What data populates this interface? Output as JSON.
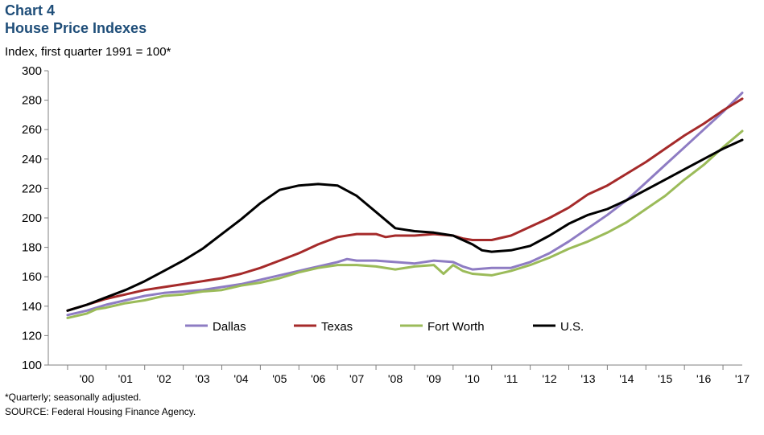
{
  "header": {
    "chart_number": "Chart 4",
    "title": "House Price Indexes",
    "ylabel": "Index, first quarter 1991 = 100*"
  },
  "footer": {
    "footnote": "*Quarterly; seasonally adjusted.",
    "source": "SOURCE: Federal Housing Finance Agency."
  },
  "chart_data": {
    "type": "line",
    "title": "House Price Indexes",
    "ylabel": "Index, first quarter 1991 = 100*",
    "xlabel": "",
    "ylim": [
      100,
      300
    ],
    "yticks": [
      100,
      120,
      140,
      160,
      180,
      200,
      220,
      240,
      260,
      280,
      300
    ],
    "x_range": [
      1999.5,
      2017.5
    ],
    "x_tick_labels": [
      {
        "label": "'00",
        "center": 2000.5
      },
      {
        "label": "'01",
        "center": 2001.5
      },
      {
        "label": "'02",
        "center": 2002.5
      },
      {
        "label": "'03",
        "center": 2003.5
      },
      {
        "label": "'04",
        "center": 2004.5
      },
      {
        "label": "'05",
        "center": 2005.5
      },
      {
        "label": "'06",
        "center": 2006.5
      },
      {
        "label": "'07",
        "center": 2007.5
      },
      {
        "label": "'08",
        "center": 2008.5
      },
      {
        "label": "'09",
        "center": 2009.5
      },
      {
        "label": "'10",
        "center": 2010.5
      },
      {
        "label": "'11",
        "center": 2011.5
      },
      {
        "label": "'12",
        "center": 2012.5
      },
      {
        "label": "'13",
        "center": 2013.5
      },
      {
        "label": "'14",
        "center": 2014.5
      },
      {
        "label": "'15",
        "center": 2015.5
      },
      {
        "label": "'16",
        "center": 2016.5
      },
      {
        "label": "'17",
        "center": 2017.5
      }
    ],
    "x_tick_marks": [
      2000,
      2001,
      2002,
      2003,
      2004,
      2005,
      2006,
      2007,
      2008,
      2009,
      2010,
      2011,
      2012,
      2013,
      2014,
      2015,
      2016,
      2017
    ],
    "grid": false,
    "legend": {
      "placement": "bottom-center-inside",
      "orientation": "horizontal"
    },
    "series": [
      {
        "name": "Dallas",
        "color": "#8e7cc3",
        "points": [
          [
            2000.0,
            134
          ],
          [
            2000.5,
            137
          ],
          [
            2001.0,
            141
          ],
          [
            2001.5,
            144
          ],
          [
            2002.0,
            147
          ],
          [
            2002.5,
            149
          ],
          [
            2003.0,
            150
          ],
          [
            2003.5,
            151
          ],
          [
            2004.0,
            153
          ],
          [
            2004.5,
            155
          ],
          [
            2005.0,
            158
          ],
          [
            2005.5,
            161
          ],
          [
            2006.0,
            164
          ],
          [
            2006.5,
            167
          ],
          [
            2007.0,
            170
          ],
          [
            2007.25,
            172
          ],
          [
            2007.5,
            171
          ],
          [
            2008.0,
            171
          ],
          [
            2008.5,
            170
          ],
          [
            2009.0,
            169
          ],
          [
            2009.5,
            171
          ],
          [
            2010.0,
            170
          ],
          [
            2010.25,
            167
          ],
          [
            2010.5,
            165
          ],
          [
            2011.0,
            166
          ],
          [
            2011.5,
            166
          ],
          [
            2012.0,
            170
          ],
          [
            2012.5,
            176
          ],
          [
            2013.0,
            184
          ],
          [
            2013.5,
            193
          ],
          [
            2014.0,
            202
          ],
          [
            2014.5,
            212
          ],
          [
            2015.0,
            224
          ],
          [
            2015.5,
            236
          ],
          [
            2016.0,
            248
          ],
          [
            2016.5,
            260
          ],
          [
            2017.0,
            272
          ],
          [
            2017.5,
            285
          ]
        ]
      },
      {
        "name": "Texas",
        "color": "#a52a2a",
        "points": [
          [
            2000.0,
            137
          ],
          [
            2000.5,
            141
          ],
          [
            2001.0,
            145
          ],
          [
            2001.5,
            148
          ],
          [
            2002.0,
            151
          ],
          [
            2002.5,
            153
          ],
          [
            2003.0,
            155
          ],
          [
            2003.5,
            157
          ],
          [
            2004.0,
            159
          ],
          [
            2004.5,
            162
          ],
          [
            2005.0,
            166
          ],
          [
            2005.5,
            171
          ],
          [
            2006.0,
            176
          ],
          [
            2006.5,
            182
          ],
          [
            2007.0,
            187
          ],
          [
            2007.5,
            189
          ],
          [
            2008.0,
            189
          ],
          [
            2008.25,
            187
          ],
          [
            2008.5,
            188
          ],
          [
            2009.0,
            188
          ],
          [
            2009.5,
            189
          ],
          [
            2010.0,
            188
          ],
          [
            2010.25,
            186
          ],
          [
            2010.5,
            185
          ],
          [
            2011.0,
            185
          ],
          [
            2011.5,
            188
          ],
          [
            2012.0,
            194
          ],
          [
            2012.5,
            200
          ],
          [
            2013.0,
            207
          ],
          [
            2013.5,
            216
          ],
          [
            2014.0,
            222
          ],
          [
            2014.5,
            230
          ],
          [
            2015.0,
            238
          ],
          [
            2015.5,
            247
          ],
          [
            2016.0,
            256
          ],
          [
            2016.5,
            264
          ],
          [
            2017.0,
            273
          ],
          [
            2017.5,
            281
          ]
        ]
      },
      {
        "name": "Fort Worth",
        "color": "#9bbb59",
        "points": [
          [
            2000.0,
            132
          ],
          [
            2000.5,
            135
          ],
          [
            2000.75,
            138
          ],
          [
            2001.0,
            139
          ],
          [
            2001.5,
            142
          ],
          [
            2002.0,
            144
          ],
          [
            2002.5,
            147
          ],
          [
            2003.0,
            148
          ],
          [
            2003.5,
            150
          ],
          [
            2004.0,
            151
          ],
          [
            2004.5,
            154
          ],
          [
            2005.0,
            156
          ],
          [
            2005.5,
            159
          ],
          [
            2006.0,
            163
          ],
          [
            2006.5,
            166
          ],
          [
            2007.0,
            168
          ],
          [
            2007.5,
            168
          ],
          [
            2008.0,
            167
          ],
          [
            2008.5,
            165
          ],
          [
            2009.0,
            167
          ],
          [
            2009.5,
            168
          ],
          [
            2009.75,
            162
          ],
          [
            2010.0,
            168
          ],
          [
            2010.25,
            164
          ],
          [
            2010.5,
            162
          ],
          [
            2011.0,
            161
          ],
          [
            2011.5,
            164
          ],
          [
            2012.0,
            168
          ],
          [
            2012.5,
            173
          ],
          [
            2013.0,
            179
          ],
          [
            2013.5,
            184
          ],
          [
            2014.0,
            190
          ],
          [
            2014.5,
            197
          ],
          [
            2015.0,
            206
          ],
          [
            2015.5,
            215
          ],
          [
            2016.0,
            226
          ],
          [
            2016.5,
            236
          ],
          [
            2017.0,
            248
          ],
          [
            2017.5,
            259
          ]
        ]
      },
      {
        "name": "U.S.",
        "color": "#000000",
        "points": [
          [
            2000.0,
            137
          ],
          [
            2000.5,
            141
          ],
          [
            2001.0,
            146
          ],
          [
            2001.5,
            151
          ],
          [
            2002.0,
            157
          ],
          [
            2002.5,
            164
          ],
          [
            2003.0,
            171
          ],
          [
            2003.5,
            179
          ],
          [
            2004.0,
            189
          ],
          [
            2004.5,
            199
          ],
          [
            2005.0,
            210
          ],
          [
            2005.5,
            219
          ],
          [
            2006.0,
            222
          ],
          [
            2006.5,
            223
          ],
          [
            2007.0,
            222
          ],
          [
            2007.5,
            215
          ],
          [
            2008.0,
            204
          ],
          [
            2008.5,
            193
          ],
          [
            2009.0,
            191
          ],
          [
            2009.5,
            190
          ],
          [
            2010.0,
            188
          ],
          [
            2010.25,
            185
          ],
          [
            2010.5,
            182
          ],
          [
            2010.75,
            178
          ],
          [
            2011.0,
            177
          ],
          [
            2011.5,
            178
          ],
          [
            2012.0,
            181
          ],
          [
            2012.5,
            188
          ],
          [
            2013.0,
            196
          ],
          [
            2013.5,
            202
          ],
          [
            2014.0,
            206
          ],
          [
            2014.5,
            212
          ],
          [
            2015.0,
            219
          ],
          [
            2015.5,
            226
          ],
          [
            2016.0,
            233
          ],
          [
            2016.5,
            240
          ],
          [
            2017.0,
            247
          ],
          [
            2017.5,
            253
          ]
        ]
      }
    ]
  }
}
